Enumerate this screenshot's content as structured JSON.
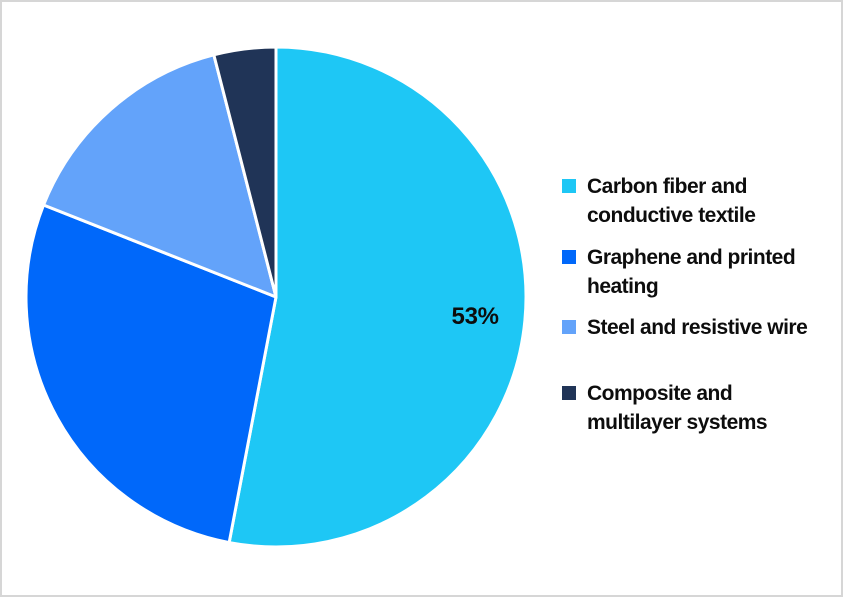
{
  "canvas": {
    "background_color": "#ffffff",
    "border_color": "#d6d6d6"
  },
  "chart_data": {
    "type": "pie",
    "title": "",
    "categories": [
      "Carbon fiber and conductive textile",
      "Graphene and printed heating",
      "Steel and resistive wire",
      "Composite and multilayer systems"
    ],
    "values": [
      53,
      28,
      15,
      4
    ],
    "unit": "%",
    "colors": [
      "#1EC7F5",
      "#0068FA",
      "#63A3FA",
      "#203457"
    ],
    "slice_labels": [
      "53%",
      "",
      "",
      ""
    ],
    "start_angle_deg": 0,
    "direction": "clockwise",
    "slice_border_color": "#ffffff",
    "label_color": "#0d0d0d",
    "legend_position": "right",
    "grid": false
  },
  "legend": {
    "items": [
      {
        "label": "Carbon fiber and conductive textile",
        "lines": [
          "Carbon fiber and",
          "conductive textile"
        ],
        "color": "#1EC7F5"
      },
      {
        "label": "Graphene and printed heating",
        "lines": [
          "Graphene and printed",
          "heating"
        ],
        "color": "#0068FA"
      },
      {
        "label": "Steel and resistive wire",
        "lines": [
          "Steel and resistive wire"
        ],
        "color": "#63A3FA"
      },
      {
        "label": "Composite and multilayer systems",
        "lines": [
          "Composite and",
          "multilayer systems"
        ],
        "color": "#203457"
      }
    ]
  }
}
